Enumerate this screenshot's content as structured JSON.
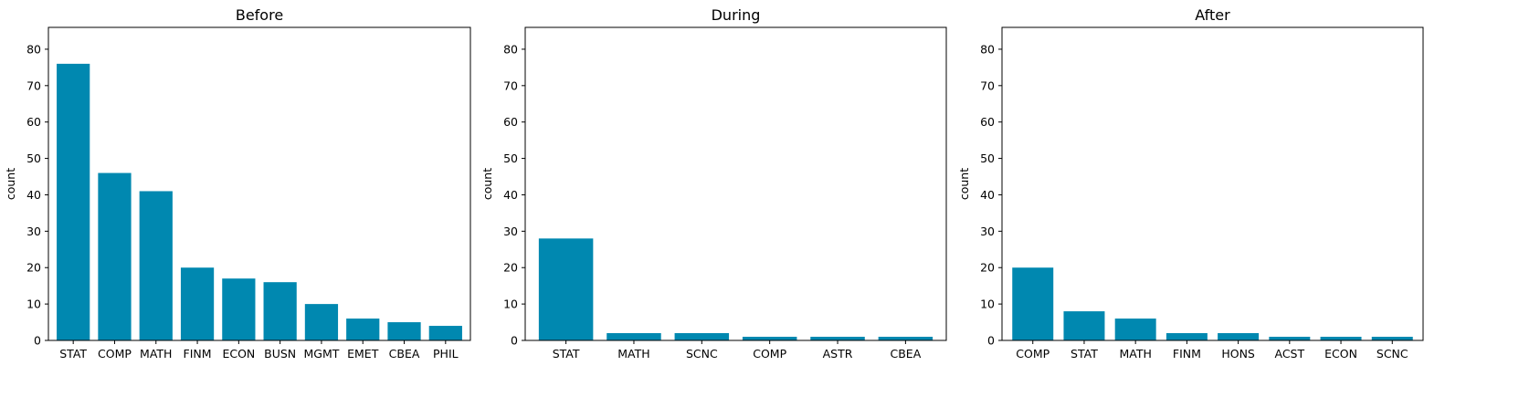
{
  "chart_data": [
    {
      "type": "bar",
      "title": "Before",
      "xlabel": "",
      "ylabel": "count",
      "ylim": [
        0,
        86
      ],
      "yticks": [
        0,
        10,
        20,
        30,
        40,
        50,
        60,
        70,
        80
      ],
      "grid": false,
      "color": "#0088b0",
      "categories": [
        "STAT",
        "COMP",
        "MATH",
        "FINM",
        "ECON",
        "BUSN",
        "MGMT",
        "EMET",
        "CBEA",
        "PHIL"
      ],
      "values": [
        76,
        46,
        41,
        20,
        17,
        16,
        10,
        6,
        5,
        4
      ]
    },
    {
      "type": "bar",
      "title": "During",
      "xlabel": "",
      "ylabel": "count",
      "ylim": [
        0,
        86
      ],
      "yticks": [
        0,
        10,
        20,
        30,
        40,
        50,
        60,
        70,
        80
      ],
      "grid": false,
      "color": "#0088b0",
      "categories": [
        "STAT",
        "MATH",
        "SCNC",
        "COMP",
        "ASTR",
        "CBEA"
      ],
      "values": [
        28,
        2,
        2,
        1,
        1,
        1
      ]
    },
    {
      "type": "bar",
      "title": "After",
      "xlabel": "",
      "ylabel": "count",
      "ylim": [
        0,
        86
      ],
      "yticks": [
        0,
        10,
        20,
        30,
        40,
        50,
        60,
        70,
        80
      ],
      "grid": false,
      "color": "#0088b0",
      "categories": [
        "COMP",
        "STAT",
        "MATH",
        "FINM",
        "HONS",
        "ACST",
        "ECON",
        "SCNC"
      ],
      "values": [
        20,
        8,
        6,
        2,
        2,
        1,
        1,
        1
      ]
    }
  ]
}
